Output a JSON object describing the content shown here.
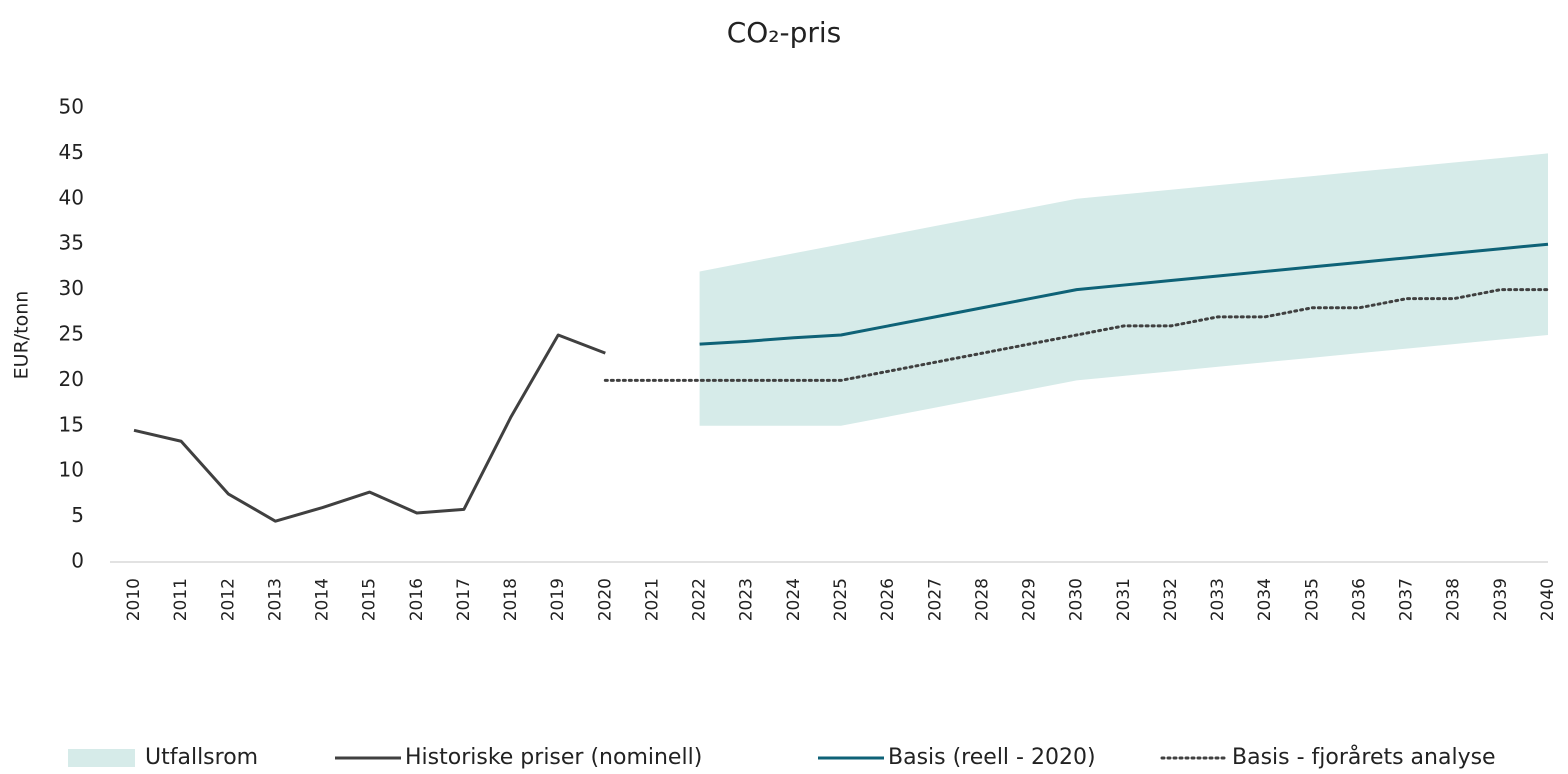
{
  "chart_data": {
    "type": "line",
    "title": "CO₂-pris",
    "y_label": "EUR/tonn",
    "categories": [
      "2010",
      "2011",
      "2012",
      "2013",
      "2014",
      "2015",
      "2016",
      "2017",
      "2018",
      "2019",
      "2020",
      "2021",
      "2022",
      "2023",
      "2024",
      "2025",
      "2026",
      "2027",
      "2028",
      "2029",
      "2030",
      "2031",
      "2032",
      "2033",
      "2034",
      "2035",
      "2036",
      "2037",
      "2038",
      "2039",
      "2040"
    ],
    "ylim": [
      0,
      50
    ],
    "yticks": [
      0,
      5,
      10,
      15,
      20,
      25,
      30,
      35,
      40,
      45,
      50
    ],
    "series": [
      {
        "name": "Utfallsrom",
        "color": "#d6ebe9",
        "style": "band",
        "lower": [
          null,
          null,
          null,
          null,
          null,
          null,
          null,
          null,
          null,
          null,
          null,
          null,
          15,
          15,
          15,
          15,
          16,
          17,
          18,
          19,
          20,
          20.5,
          21,
          21.5,
          22,
          22.5,
          23,
          23.5,
          24,
          24.5,
          25
        ],
        "upper": [
          null,
          null,
          null,
          null,
          null,
          null,
          null,
          null,
          null,
          null,
          null,
          null,
          32,
          33,
          34,
          35,
          36,
          37,
          38,
          39,
          40,
          40.5,
          41,
          41.5,
          42,
          42.5,
          43,
          43.5,
          44,
          44.5,
          45
        ]
      },
      {
        "name": "Historiske priser (nominell)",
        "color": "#404040",
        "style": "solid",
        "values": [
          14.5,
          13.3,
          7.5,
          4.5,
          6,
          7.7,
          5.4,
          5.8,
          16,
          25,
          23,
          null,
          null,
          null,
          null,
          null,
          null,
          null,
          null,
          null,
          null,
          null,
          null,
          null,
          null,
          null,
          null,
          null,
          null,
          null,
          null
        ]
      },
      {
        "name": "Basis (reell - 2020)",
        "color": "#0e6277",
        "style": "solid",
        "values": [
          null,
          null,
          null,
          null,
          null,
          null,
          null,
          null,
          null,
          null,
          null,
          null,
          24,
          24.3,
          24.7,
          25,
          26,
          27,
          28,
          29,
          30,
          30.5,
          31,
          31.5,
          32,
          32.5,
          33,
          33.5,
          34,
          34.5,
          35
        ]
      },
      {
        "name": "Basis - fjorårets analyse",
        "color": "#404040",
        "style": "dotted",
        "values": [
          null,
          null,
          null,
          null,
          null,
          null,
          null,
          null,
          null,
          null,
          20,
          20,
          20,
          20,
          20,
          20,
          21,
          22,
          23,
          24,
          25,
          26,
          26,
          27,
          27,
          28,
          28,
          29,
          29,
          30,
          30
        ]
      }
    ]
  }
}
